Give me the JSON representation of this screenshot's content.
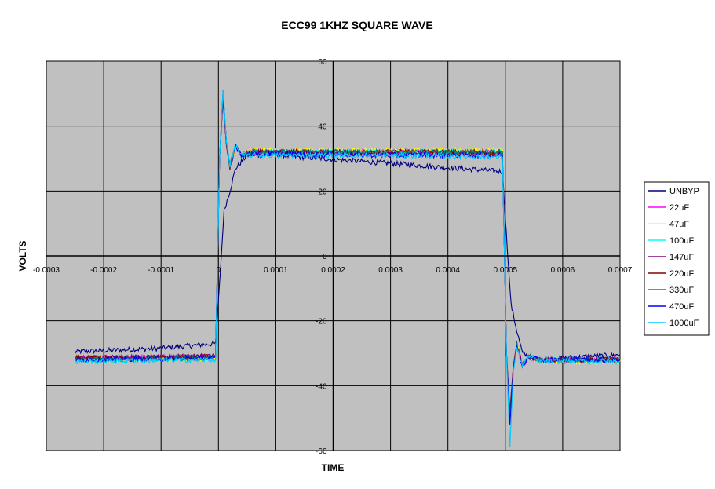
{
  "chart_data": {
    "type": "line",
    "title": "ECC99 1KHZ SQUARE WAVE",
    "xlabel": "TIME",
    "ylabel": "VOLTS",
    "xlim": [
      -0.0003,
      0.0007
    ],
    "ylim": [
      -60,
      60
    ],
    "x_ticks": [
      -0.0003,
      -0.0002,
      -0.0001,
      0,
      0.0001,
      0.0002,
      0.0003,
      0.0004,
      0.0005,
      0.0006,
      0.0007
    ],
    "x_tick_labels": [
      "-0.0003",
      "-0.0002",
      "-0.0001",
      "0",
      "0.0001",
      "0.0002",
      "0.0003",
      "0.0004",
      "0.0005",
      "0.0006",
      "0.0007"
    ],
    "y_ticks": [
      -60,
      -40,
      -20,
      0,
      20,
      40,
      60
    ],
    "y_tick_labels": [
      "-60",
      "-40",
      "-20",
      "0",
      "20",
      "40",
      "60"
    ],
    "grid": true,
    "plot_background": "#c0c0c0",
    "legend_position": "right",
    "series": [
      {
        "name": "UNBYP",
        "color": "#000080",
        "x": [
          -0.00025,
          -0.0001,
          -5e-06,
          5e-06,
          1e-05,
          2e-05,
          3e-05,
          5e-05,
          0.0001,
          0.0003,
          0.000495,
          0.000505,
          0.00051,
          0.00052,
          0.00053,
          0.00055,
          0.0006,
          0.0007
        ],
        "y": [
          -29.5,
          -28.5,
          -27,
          0,
          14,
          20,
          27,
          31,
          31,
          28.5,
          26,
          -2,
          -15,
          -23,
          -30,
          -32,
          -31.5,
          -30.5
        ]
      },
      {
        "name": "22uF",
        "color": "#ff00ff",
        "x": [
          -0.00025,
          -5e-06,
          2e-06,
          8e-06,
          1.4e-05,
          2e-05,
          3e-05,
          4e-05,
          6e-05,
          0.0003,
          0.000495,
          0.000502,
          0.000508,
          0.000514,
          0.00052,
          0.00053,
          0.00054,
          0.00056,
          0.0007
        ],
        "y": [
          -31.5,
          -31,
          30,
          48,
          34,
          27,
          34,
          31,
          32,
          32,
          32,
          -30,
          -48,
          -34,
          -27,
          -34,
          -31,
          -32,
          -32
        ]
      },
      {
        "name": "47uF",
        "color": "#ffff00",
        "x": [
          -0.00025,
          -5e-06,
          2e-06,
          8e-06,
          1.4e-05,
          2e-05,
          3e-05,
          4e-05,
          6e-05,
          0.0003,
          0.000495,
          0.000502,
          0.000508,
          0.000514,
          0.00052,
          0.00053,
          0.00054,
          0.00056,
          0.0007
        ],
        "y": [
          -32,
          -31.5,
          30,
          49,
          35,
          27,
          34,
          31,
          32.5,
          32.5,
          32.5,
          -30,
          -49,
          -35,
          -27,
          -34,
          -31,
          -32.5,
          -32.5
        ]
      },
      {
        "name": "100uF",
        "color": "#00ffff",
        "x": [
          -0.00025,
          -5e-06,
          2e-06,
          8e-06,
          1.4e-05,
          2e-05,
          3e-05,
          4e-05,
          6e-05,
          0.0003,
          0.000495,
          0.000502,
          0.000508,
          0.000514,
          0.00052,
          0.00053,
          0.00054,
          0.00056,
          0.0007
        ],
        "y": [
          -32,
          -31.5,
          30,
          50,
          35,
          28,
          34,
          31,
          32,
          32,
          32,
          -30,
          -50,
          -35,
          -28,
          -34,
          -31,
          -32,
          -32
        ]
      },
      {
        "name": "147uF",
        "color": "#800080",
        "x": [
          -0.00025,
          -5e-06,
          2e-06,
          8e-06,
          1.4e-05,
          2e-05,
          3e-05,
          4e-05,
          6e-05,
          0.0003,
          0.000495,
          0.000502,
          0.000508,
          0.000514,
          0.00052,
          0.00053,
          0.00054,
          0.00056,
          0.0007
        ],
        "y": [
          -31.5,
          -31,
          30,
          48,
          34,
          27,
          34,
          31,
          32,
          31.5,
          31.5,
          -30,
          -48,
          -34,
          -27,
          -34,
          -31,
          -32,
          -32
        ]
      },
      {
        "name": "220uF",
        "color": "#800000",
        "x": [
          -0.00025,
          -5e-06,
          2e-06,
          8e-06,
          1.4e-05,
          2e-05,
          3e-05,
          4e-05,
          6e-05,
          0.0003,
          0.000495,
          0.000502,
          0.000508,
          0.000514,
          0.00052,
          0.00053,
          0.00054,
          0.00056,
          0.0007
        ],
        "y": [
          -31.5,
          -31,
          30,
          49,
          34,
          27,
          34,
          31,
          32,
          32,
          32,
          -30,
          -49,
          -34,
          -27,
          -34,
          -31,
          -32,
          -32
        ]
      },
      {
        "name": "330uF",
        "color": "#008080",
        "x": [
          -0.00025,
          -5e-06,
          2e-06,
          8e-06,
          1.4e-05,
          2e-05,
          3e-05,
          4e-05,
          6e-05,
          0.0003,
          0.000495,
          0.000502,
          0.000508,
          0.000514,
          0.00052,
          0.00053,
          0.00054,
          0.00056,
          0.0007
        ],
        "y": [
          -32,
          -31.5,
          30,
          50,
          35,
          27,
          34,
          31,
          32,
          32,
          32,
          -30,
          -50,
          -35,
          -27,
          -34,
          -31,
          -32,
          -32
        ]
      },
      {
        "name": "470uF",
        "color": "#0000ff",
        "x": [
          -0.00025,
          -5e-06,
          2e-06,
          8e-06,
          1.4e-05,
          2e-05,
          3e-05,
          4e-05,
          6e-05,
          0.0003,
          0.000495,
          0.000502,
          0.000508,
          0.000514,
          0.00052,
          0.00053,
          0.00054,
          0.00056,
          0.0007
        ],
        "y": [
          -32,
          -31.5,
          30,
          51,
          35,
          28,
          34,
          31,
          31.5,
          31,
          31,
          -30,
          -52,
          -35,
          -28,
          -34,
          -31,
          -32,
          -32
        ]
      },
      {
        "name": "1000uF",
        "color": "#00ccff",
        "x": [
          -0.00025,
          -5e-06,
          2e-06,
          8e-06,
          1.4e-05,
          2e-05,
          3e-05,
          4e-05,
          6e-05,
          0.0003,
          0.000495,
          0.000502,
          0.000508,
          0.000514,
          0.00052,
          0.00053,
          0.00054,
          0.00056,
          0.0007
        ],
        "y": [
          -32.5,
          -32,
          30,
          51,
          35,
          28,
          34,
          31,
          31,
          31,
          30.5,
          -30,
          -59,
          -36,
          -28,
          -34,
          -31,
          -32.5,
          -32.5
        ]
      }
    ]
  }
}
